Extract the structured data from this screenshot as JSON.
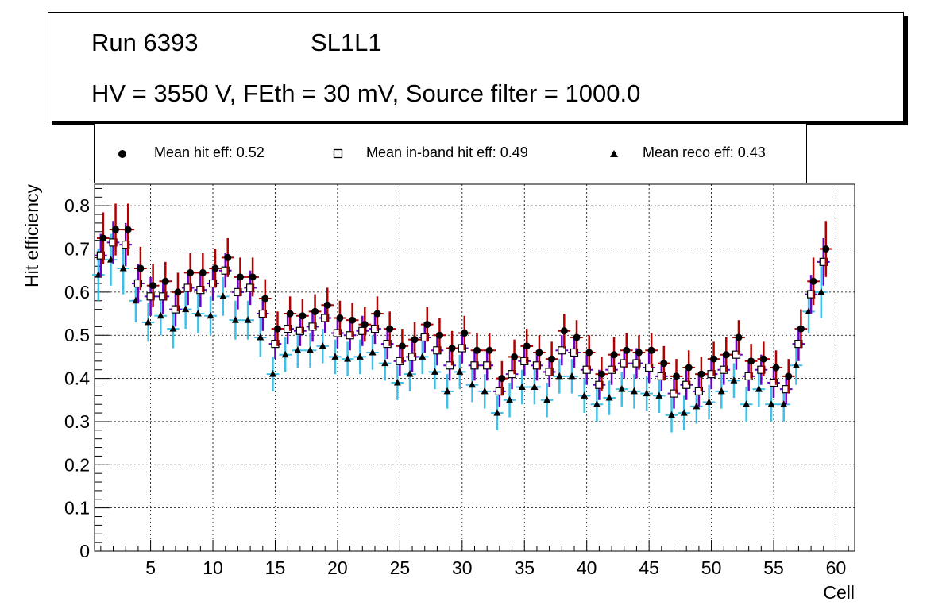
{
  "header": {
    "run": "Run 6393",
    "layer": "SL1L1",
    "settings": "HV = 3550 V, FEth = 30 mV, Source filter = 1000.0"
  },
  "legend": {
    "hit": "Mean hit  eff: 0.52",
    "inband": "Mean in-band hit eff: 0.49",
    "reco": "Mean reco eff: 0.43"
  },
  "colors": {
    "hit_marker": "#000000",
    "hit_error": "#b00000",
    "inband_error": "#6a00c8",
    "reco_error": "#40c0e8",
    "grid": "#000000"
  },
  "chart_data": {
    "type": "scatter",
    "xlabel": "Cell",
    "ylabel": "Hit efficiency",
    "xlim": [
      0.5,
      61.5
    ],
    "ylim": [
      0,
      0.85
    ],
    "xticks": [
      5,
      10,
      15,
      20,
      25,
      30,
      35,
      40,
      45,
      50,
      55,
      60
    ],
    "yticks": [
      0,
      0.1,
      0.2,
      0.3,
      0.4,
      0.5,
      0.6,
      0.7,
      0.8
    ],
    "ytick_labels": [
      "0",
      "0.1",
      "0.2",
      "0.3",
      "0.4",
      "0.5",
      "0.6",
      "0.7",
      "0.8"
    ],
    "grid": true,
    "x": [
      1,
      2,
      3,
      4,
      5,
      6,
      7,
      8,
      9,
      10,
      11,
      12,
      13,
      14,
      15,
      16,
      17,
      18,
      19,
      20,
      21,
      22,
      23,
      24,
      25,
      26,
      27,
      28,
      29,
      30,
      31,
      32,
      33,
      34,
      35,
      36,
      37,
      38,
      39,
      40,
      41,
      42,
      43,
      44,
      45,
      46,
      47,
      48,
      49,
      50,
      51,
      52,
      53,
      54,
      55,
      56,
      57,
      58,
      59
    ],
    "series": [
      {
        "name": "Mean hit  eff: 0.52",
        "marker": "circle",
        "values": [
          0.725,
          0.745,
          0.745,
          0.655,
          0.615,
          0.625,
          0.6,
          0.645,
          0.645,
          0.655,
          0.68,
          0.635,
          0.635,
          0.585,
          0.515,
          0.55,
          0.545,
          0.555,
          0.57,
          0.54,
          0.535,
          0.525,
          0.55,
          0.515,
          0.475,
          0.49,
          0.525,
          0.5,
          0.47,
          0.505,
          0.465,
          0.465,
          0.4,
          0.45,
          0.475,
          0.46,
          0.445,
          0.51,
          0.495,
          0.46,
          0.41,
          0.455,
          0.465,
          0.46,
          0.465,
          0.435,
          0.405,
          0.425,
          0.41,
          0.445,
          0.455,
          0.495,
          0.44,
          0.445,
          0.425,
          0.405,
          0.515,
          0.625,
          0.7
        ],
        "errors": [
          0.06,
          0.06,
          0.06,
          0.05,
          0.05,
          0.045,
          0.045,
          0.045,
          0.045,
          0.045,
          0.045,
          0.045,
          0.045,
          0.045,
          0.04,
          0.04,
          0.04,
          0.04,
          0.04,
          0.04,
          0.04,
          0.04,
          0.04,
          0.04,
          0.04,
          0.04,
          0.04,
          0.04,
          0.04,
          0.04,
          0.04,
          0.04,
          0.04,
          0.04,
          0.04,
          0.04,
          0.04,
          0.04,
          0.04,
          0.04,
          0.04,
          0.04,
          0.04,
          0.04,
          0.04,
          0.04,
          0.04,
          0.04,
          0.04,
          0.04,
          0.04,
          0.04,
          0.04,
          0.04,
          0.04,
          0.04,
          0.045,
          0.055,
          0.065
        ]
      },
      {
        "name": "Mean in-band hit eff: 0.49",
        "marker": "open-square",
        "values": [
          0.685,
          0.715,
          0.71,
          0.62,
          0.59,
          0.59,
          0.56,
          0.61,
          0.605,
          0.62,
          0.65,
          0.6,
          0.61,
          0.55,
          0.48,
          0.515,
          0.51,
          0.52,
          0.54,
          0.505,
          0.5,
          0.51,
          0.515,
          0.48,
          0.44,
          0.45,
          0.495,
          0.465,
          0.43,
          0.47,
          0.43,
          0.43,
          0.37,
          0.41,
          0.44,
          0.43,
          0.415,
          0.465,
          0.46,
          0.42,
          0.385,
          0.42,
          0.435,
          0.435,
          0.425,
          0.405,
          0.365,
          0.385,
          0.37,
          0.41,
          0.42,
          0.455,
          0.405,
          0.42,
          0.39,
          0.375,
          0.48,
          0.595,
          0.67
        ],
        "errors": [
          0.05,
          0.05,
          0.05,
          0.045,
          0.045,
          0.04,
          0.04,
          0.04,
          0.04,
          0.04,
          0.04,
          0.04,
          0.04,
          0.04,
          0.035,
          0.035,
          0.035,
          0.035,
          0.035,
          0.035,
          0.035,
          0.035,
          0.035,
          0.035,
          0.035,
          0.035,
          0.035,
          0.035,
          0.035,
          0.035,
          0.035,
          0.035,
          0.035,
          0.035,
          0.035,
          0.035,
          0.035,
          0.035,
          0.035,
          0.035,
          0.035,
          0.035,
          0.035,
          0.035,
          0.035,
          0.035,
          0.035,
          0.035,
          0.035,
          0.035,
          0.035,
          0.035,
          0.035,
          0.035,
          0.035,
          0.035,
          0.04,
          0.045,
          0.055
        ]
      },
      {
        "name": "Mean reco eff: 0.43",
        "marker": "triangle",
        "values": [
          0.64,
          0.675,
          0.655,
          0.58,
          0.53,
          0.545,
          0.515,
          0.56,
          0.55,
          0.545,
          0.59,
          0.535,
          0.535,
          0.495,
          0.41,
          0.455,
          0.465,
          0.465,
          0.475,
          0.45,
          0.445,
          0.45,
          0.46,
          0.435,
          0.39,
          0.41,
          0.45,
          0.415,
          0.37,
          0.415,
          0.385,
          0.37,
          0.32,
          0.35,
          0.38,
          0.38,
          0.35,
          0.405,
          0.405,
          0.36,
          0.34,
          0.355,
          0.375,
          0.37,
          0.365,
          0.36,
          0.315,
          0.32,
          0.335,
          0.345,
          0.37,
          0.395,
          0.34,
          0.375,
          0.34,
          0.34,
          0.43,
          0.555,
          0.6
        ],
        "errors": [
          0.06,
          0.06,
          0.06,
          0.05,
          0.045,
          0.045,
          0.045,
          0.045,
          0.045,
          0.045,
          0.045,
          0.045,
          0.045,
          0.045,
          0.04,
          0.04,
          0.04,
          0.04,
          0.04,
          0.04,
          0.04,
          0.04,
          0.04,
          0.04,
          0.04,
          0.04,
          0.04,
          0.04,
          0.04,
          0.04,
          0.04,
          0.04,
          0.04,
          0.04,
          0.04,
          0.04,
          0.04,
          0.04,
          0.04,
          0.04,
          0.04,
          0.04,
          0.04,
          0.04,
          0.04,
          0.04,
          0.04,
          0.04,
          0.04,
          0.04,
          0.04,
          0.04,
          0.04,
          0.04,
          0.04,
          0.04,
          0.045,
          0.05,
          0.06
        ]
      }
    ]
  }
}
